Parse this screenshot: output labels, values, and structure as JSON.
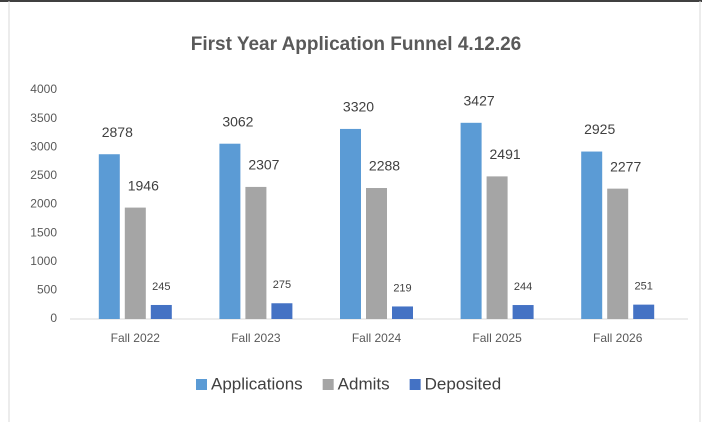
{
  "chart_data": {
    "type": "bar",
    "title": "First Year Application Funnel 4.12.26",
    "categories": [
      "Fall 2022",
      "Fall 2023",
      "Fall 2024",
      "Fall 2025",
      "Fall 2026"
    ],
    "series": [
      {
        "name": "Applications",
        "color": "#5b9bd5",
        "values": [
          2878,
          3062,
          3320,
          3427,
          2925
        ]
      },
      {
        "name": "Admits",
        "color": "#a5a5a5",
        "values": [
          1946,
          2307,
          2288,
          2491,
          2277
        ]
      },
      {
        "name": "Deposited",
        "color": "#4472c4",
        "values": [
          245,
          275,
          219,
          244,
          251
        ]
      }
    ],
    "ylim": [
      0,
      4000
    ],
    "yticks": [
      0,
      500,
      1000,
      1500,
      2000,
      2500,
      3000,
      3500,
      4000
    ],
    "grid": false,
    "legend": "bottom"
  }
}
